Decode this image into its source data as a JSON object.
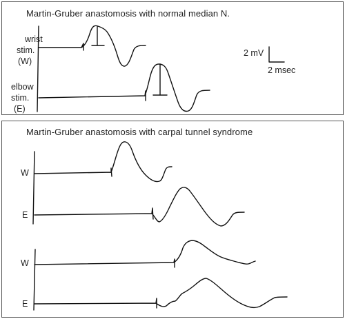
{
  "top_panel": {
    "title": "Martin-Gruber anastomosis with normal median N.",
    "wrist_label": [
      "wrist",
      "stim.",
      "(W)"
    ],
    "elbow_label": [
      "elbow",
      "stim.",
      "(E)"
    ],
    "scale_mv": "2 mV",
    "scale_ms": "2 msec"
  },
  "bottom_panel": {
    "title": "Martin-Gruber anastomosis with carpal tunnel syndrome",
    "row_labels": [
      "W",
      "E",
      "W",
      "E"
    ]
  }
}
